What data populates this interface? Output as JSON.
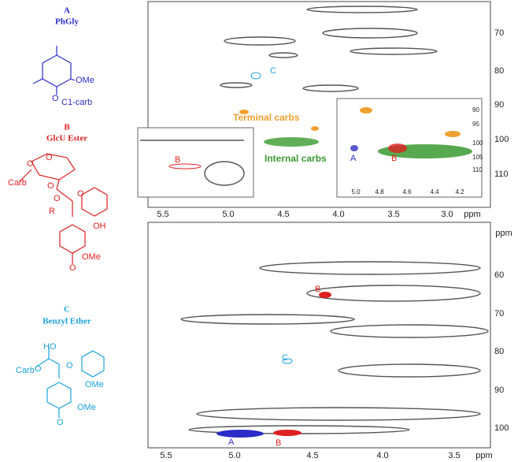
{
  "structures": [
    {
      "letter": "A",
      "name": "PhGly",
      "labels": [
        "OMe",
        "O",
        "C1-carb"
      ]
    },
    {
      "letter": "B",
      "name": "GlcU Ester",
      "labels": [
        "Carb",
        "O",
        "O",
        "O",
        "O",
        "R",
        "O",
        "OH",
        "O",
        "OMe"
      ]
    },
    {
      "letter": "C",
      "name": "Benzyl Ether",
      "labels": [
        "HO",
        "Carb",
        "O",
        "O",
        "OMe",
        "O",
        "OMe"
      ]
    }
  ],
  "top_panel": {
    "y_ticks": [
      "70",
      "80",
      "90",
      "100",
      "110"
    ],
    "x_ticks": [
      "5.5",
      "5.0",
      "4.5",
      "4.0",
      "3.5",
      "3.0"
    ],
    "x_unit": "ppm",
    "annotations": {
      "c": "C",
      "terminal": "Terminal carbs",
      "internal": "Internal carbs"
    },
    "right_inset": {
      "y_ticks": [
        "90",
        "95",
        "100",
        "105",
        "110"
      ],
      "x_ticks": [
        "5.0",
        "4.8",
        "4.6",
        "4.4",
        "4.2"
      ],
      "a": "A",
      "b": "B"
    },
    "left_inset": {
      "b": "B"
    }
  },
  "bottom_panel": {
    "y_ticks": [
      "60",
      "70",
      "80",
      "90",
      "100"
    ],
    "x_ticks": [
      "5.5",
      "5.0",
      "4.5",
      "4.0",
      "3.5"
    ],
    "x_unit": "ppm",
    "y_unit": "ppm",
    "annotations": {
      "b1": "B",
      "c": "C",
      "a": "A",
      "b2": "B"
    }
  }
}
